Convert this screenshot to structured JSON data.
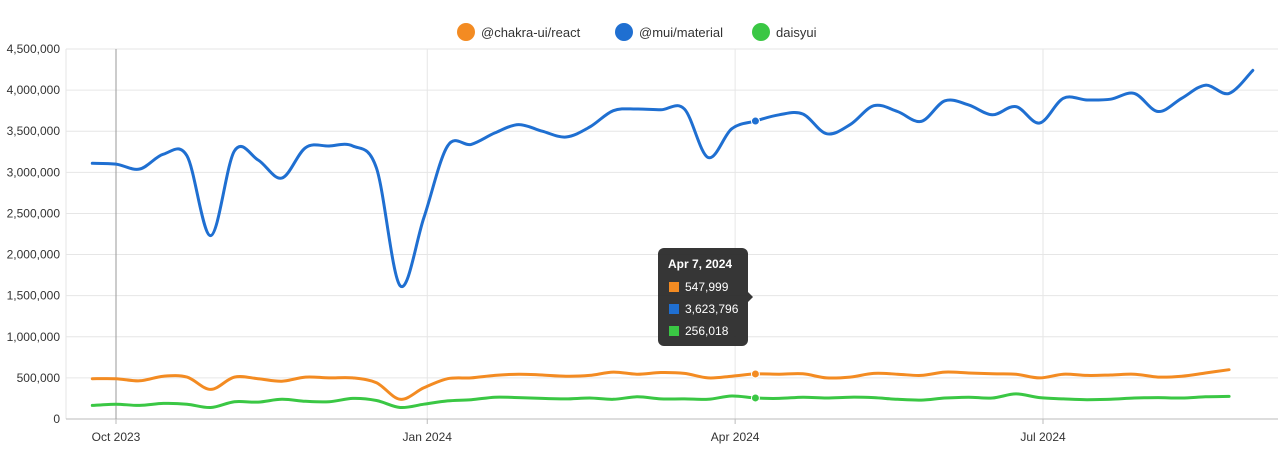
{
  "chart_data": {
    "type": "line",
    "title": "",
    "xlabel": "",
    "ylabel": "",
    "ylim": [
      0,
      4500000
    ],
    "yticks": [
      {
        "value": 0,
        "label": "0"
      },
      {
        "value": 500000,
        "label": "500,000"
      },
      {
        "value": 1000000,
        "label": "1,000,000"
      },
      {
        "value": 1500000,
        "label": "1,500,000"
      },
      {
        "value": 2000000,
        "label": "2,000,000"
      },
      {
        "value": 2500000,
        "label": "2,500,000"
      },
      {
        "value": 3000000,
        "label": "3,000,000"
      },
      {
        "value": 3500000,
        "label": "3,500,000"
      },
      {
        "value": 4000000,
        "label": "4,000,000"
      },
      {
        "value": 4500000,
        "label": "4,500,000"
      }
    ],
    "xlim": [
      "2023-09-24",
      "2024-08-25"
    ],
    "xticks": [
      {
        "date": "2023-10-01",
        "label": "Oct 2023"
      },
      {
        "date": "2024-01-01",
        "label": "Jan 2024"
      },
      {
        "date": "2024-04-01",
        "label": "Apr 2024"
      },
      {
        "date": "2024-07-01",
        "label": "Jul 2024"
      }
    ],
    "grid": true,
    "legend_position": "top-center",
    "series": [
      {
        "name": "@chakra-ui/react",
        "color": "#f38b22",
        "values": [
          [
            "2023-09-24",
            490000
          ],
          [
            "2023-10-01",
            490000
          ],
          [
            "2023-10-08",
            465000
          ],
          [
            "2023-10-15",
            520000
          ],
          [
            "2023-10-22",
            510000
          ],
          [
            "2023-10-29",
            360000
          ],
          [
            "2023-11-05",
            510000
          ],
          [
            "2023-11-12",
            490000
          ],
          [
            "2023-11-19",
            460000
          ],
          [
            "2023-11-26",
            510000
          ],
          [
            "2023-12-03",
            500000
          ],
          [
            "2023-12-10",
            500000
          ],
          [
            "2023-12-17",
            440000
          ],
          [
            "2023-12-24",
            240000
          ],
          [
            "2023-12-31",
            380000
          ],
          [
            "2024-01-07",
            490000
          ],
          [
            "2024-01-14",
            500000
          ],
          [
            "2024-01-21",
            530000
          ],
          [
            "2024-01-28",
            545000
          ],
          [
            "2024-02-04",
            535000
          ],
          [
            "2024-02-11",
            520000
          ],
          [
            "2024-02-18",
            530000
          ],
          [
            "2024-02-25",
            570000
          ],
          [
            "2024-03-03",
            545000
          ],
          [
            "2024-03-10",
            565000
          ],
          [
            "2024-03-17",
            555000
          ],
          [
            "2024-03-24",
            500000
          ],
          [
            "2024-03-31",
            520000
          ],
          [
            "2024-04-07",
            547999
          ],
          [
            "2024-04-14",
            545000
          ],
          [
            "2024-04-21",
            550000
          ],
          [
            "2024-04-28",
            500000
          ],
          [
            "2024-05-05",
            510000
          ],
          [
            "2024-05-12",
            555000
          ],
          [
            "2024-05-19",
            545000
          ],
          [
            "2024-05-26",
            530000
          ],
          [
            "2024-06-02",
            570000
          ],
          [
            "2024-06-09",
            560000
          ],
          [
            "2024-06-16",
            550000
          ],
          [
            "2024-06-23",
            545000
          ],
          [
            "2024-06-30",
            500000
          ],
          [
            "2024-07-07",
            545000
          ],
          [
            "2024-07-14",
            530000
          ],
          [
            "2024-07-21",
            535000
          ],
          [
            "2024-07-28",
            545000
          ],
          [
            "2024-08-04",
            510000
          ],
          [
            "2024-08-11",
            520000
          ],
          [
            "2024-08-18",
            560000
          ],
          [
            "2024-08-25",
            600000
          ]
        ]
      },
      {
        "name": "@mui/material",
        "color": "#1f6fd1",
        "values": [
          [
            "2023-09-24",
            3110000
          ],
          [
            "2023-10-01",
            3100000
          ],
          [
            "2023-10-08",
            3040000
          ],
          [
            "2023-10-15",
            3220000
          ],
          [
            "2023-10-22",
            3200000
          ],
          [
            "2023-10-29",
            2230000
          ],
          [
            "2023-11-05",
            3260000
          ],
          [
            "2023-11-12",
            3150000
          ],
          [
            "2023-11-19",
            2930000
          ],
          [
            "2023-11-26",
            3300000
          ],
          [
            "2023-12-03",
            3320000
          ],
          [
            "2023-12-10",
            3320000
          ],
          [
            "2023-12-17",
            3050000
          ],
          [
            "2023-12-24",
            1620000
          ],
          [
            "2023-12-31",
            2450000
          ],
          [
            "2024-01-07",
            3320000
          ],
          [
            "2024-01-14",
            3340000
          ],
          [
            "2024-01-21",
            3480000
          ],
          [
            "2024-01-28",
            3580000
          ],
          [
            "2024-02-04",
            3500000
          ],
          [
            "2024-02-11",
            3430000
          ],
          [
            "2024-02-18",
            3550000
          ],
          [
            "2024-02-25",
            3750000
          ],
          [
            "2024-03-03",
            3770000
          ],
          [
            "2024-03-10",
            3760000
          ],
          [
            "2024-03-17",
            3770000
          ],
          [
            "2024-03-24",
            3180000
          ],
          [
            "2024-03-31",
            3530000
          ],
          [
            "2024-04-07",
            3623796
          ],
          [
            "2024-04-14",
            3700000
          ],
          [
            "2024-04-21",
            3710000
          ],
          [
            "2024-04-28",
            3470000
          ],
          [
            "2024-05-05",
            3580000
          ],
          [
            "2024-05-12",
            3810000
          ],
          [
            "2024-05-19",
            3740000
          ],
          [
            "2024-05-26",
            3620000
          ],
          [
            "2024-06-02",
            3870000
          ],
          [
            "2024-06-09",
            3820000
          ],
          [
            "2024-06-16",
            3700000
          ],
          [
            "2024-06-23",
            3800000
          ],
          [
            "2024-06-30",
            3600000
          ],
          [
            "2024-07-07",
            3900000
          ],
          [
            "2024-07-14",
            3880000
          ],
          [
            "2024-07-21",
            3890000
          ],
          [
            "2024-07-28",
            3960000
          ],
          [
            "2024-08-04",
            3740000
          ],
          [
            "2024-08-11",
            3900000
          ],
          [
            "2024-08-18",
            4060000
          ],
          [
            "2024-08-25",
            3960000
          ],
          [
            "2024-09-01",
            4240000
          ]
        ]
      },
      {
        "name": "daisyui",
        "color": "#3ac744",
        "values": [
          [
            "2023-09-24",
            165000
          ],
          [
            "2023-10-01",
            180000
          ],
          [
            "2023-10-08",
            165000
          ],
          [
            "2023-10-15",
            190000
          ],
          [
            "2023-10-22",
            180000
          ],
          [
            "2023-10-29",
            140000
          ],
          [
            "2023-11-05",
            210000
          ],
          [
            "2023-11-12",
            205000
          ],
          [
            "2023-11-19",
            240000
          ],
          [
            "2023-11-26",
            215000
          ],
          [
            "2023-12-03",
            210000
          ],
          [
            "2023-12-10",
            250000
          ],
          [
            "2023-12-17",
            225000
          ],
          [
            "2023-12-24",
            140000
          ],
          [
            "2023-12-31",
            180000
          ],
          [
            "2024-01-07",
            220000
          ],
          [
            "2024-01-14",
            235000
          ],
          [
            "2024-01-21",
            265000
          ],
          [
            "2024-01-28",
            260000
          ],
          [
            "2024-02-04",
            250000
          ],
          [
            "2024-02-11",
            245000
          ],
          [
            "2024-02-18",
            255000
          ],
          [
            "2024-02-25",
            240000
          ],
          [
            "2024-03-03",
            270000
          ],
          [
            "2024-03-10",
            245000
          ],
          [
            "2024-03-17",
            245000
          ],
          [
            "2024-03-24",
            240000
          ],
          [
            "2024-03-31",
            280000
          ],
          [
            "2024-04-07",
            256018
          ],
          [
            "2024-04-14",
            250000
          ],
          [
            "2024-04-21",
            265000
          ],
          [
            "2024-04-28",
            255000
          ],
          [
            "2024-05-05",
            265000
          ],
          [
            "2024-05-12",
            260000
          ],
          [
            "2024-05-19",
            240000
          ],
          [
            "2024-05-26",
            230000
          ],
          [
            "2024-06-02",
            255000
          ],
          [
            "2024-06-09",
            265000
          ],
          [
            "2024-06-16",
            255000
          ],
          [
            "2024-06-23",
            305000
          ],
          [
            "2024-06-30",
            260000
          ],
          [
            "2024-07-07",
            245000
          ],
          [
            "2024-07-14",
            235000
          ],
          [
            "2024-07-21",
            240000
          ],
          [
            "2024-07-28",
            255000
          ],
          [
            "2024-08-04",
            260000
          ],
          [
            "2024-08-11",
            255000
          ],
          [
            "2024-08-18",
            270000
          ],
          [
            "2024-08-25",
            275000
          ]
        ]
      }
    ],
    "crosshair_date": "2023-10-01",
    "tooltip": {
      "date": "2024-04-07",
      "title": "Apr 7, 2024",
      "rows": [
        {
          "color": "#f38b22",
          "value": "547,999"
        },
        {
          "color": "#1f6fd1",
          "value": "3,623,796"
        },
        {
          "color": "#3ac744",
          "value": "256,018"
        }
      ]
    }
  }
}
